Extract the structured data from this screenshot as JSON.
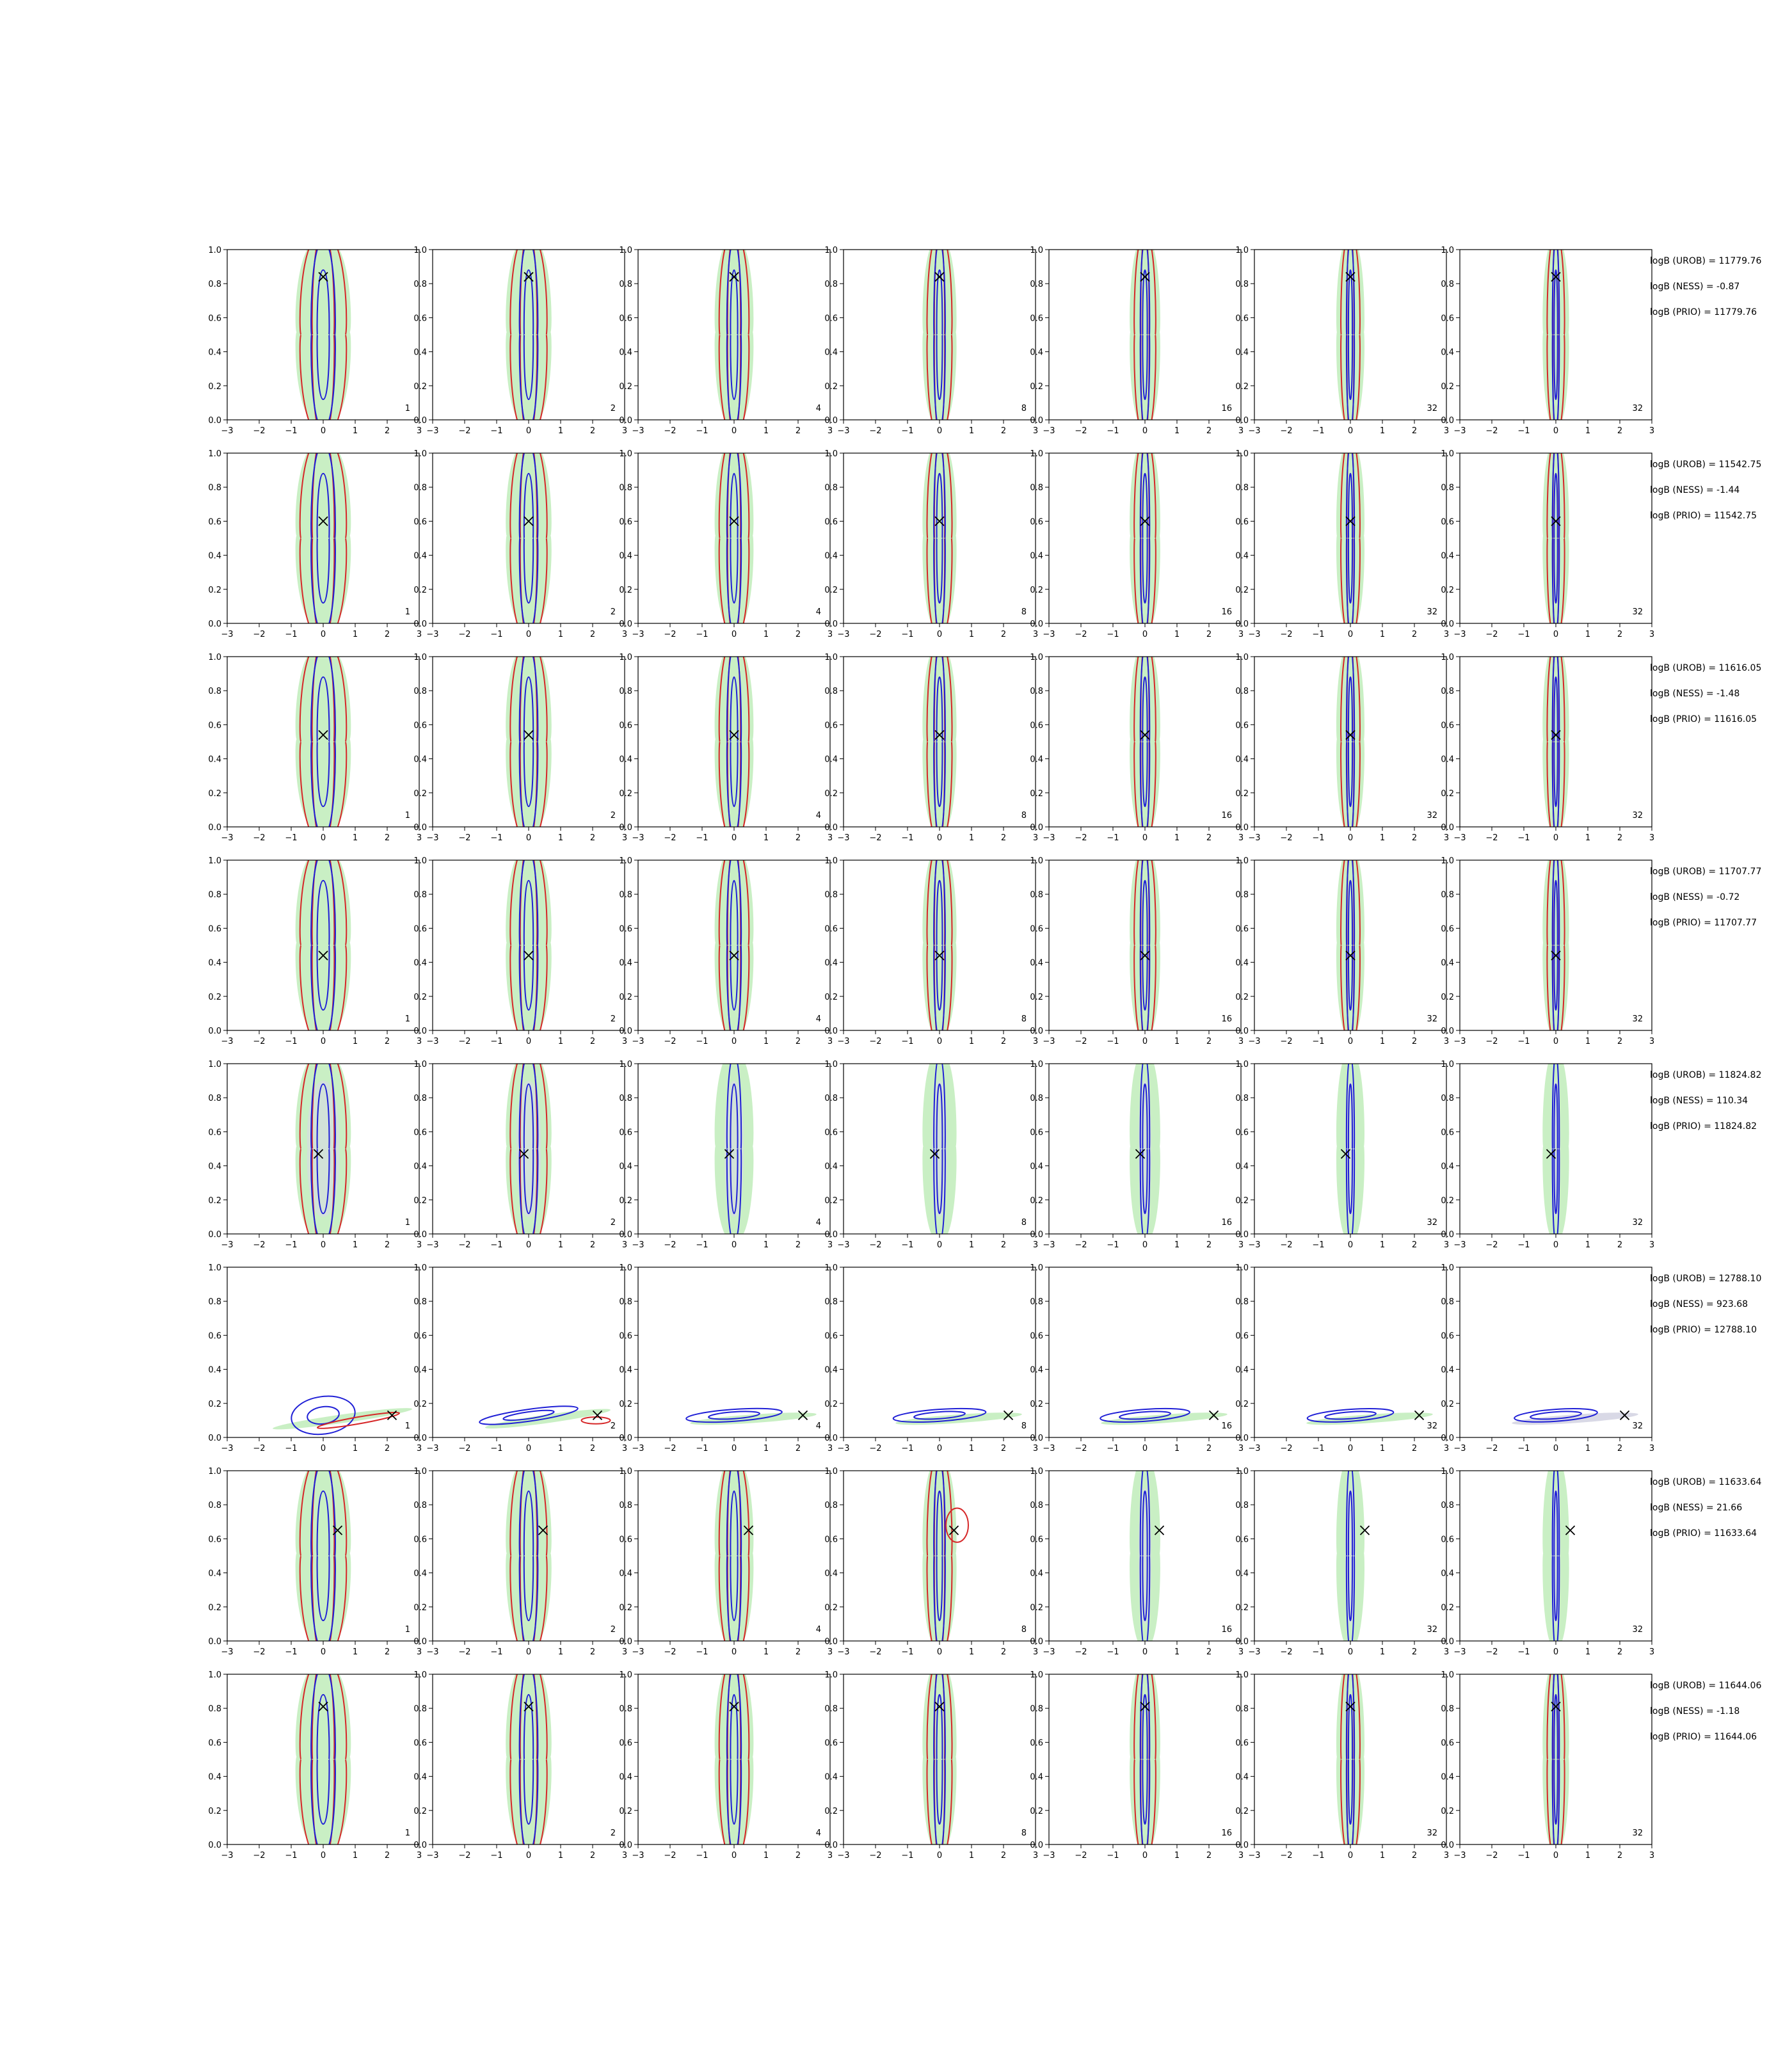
{
  "chart_data": {
    "type": "contour-grid",
    "rows": 8,
    "cols": 7,
    "xlim": [
      -3,
      3
    ],
    "ylim": [
      0.0,
      1.0
    ],
    "x_ticks": [
      "−3",
      "−2",
      "−1",
      "0",
      "1",
      "2",
      "3"
    ],
    "y_ticks": [
      "0.0",
      "0.2",
      "0.4",
      "0.6",
      "0.8",
      "1.0"
    ],
    "panel_labels": [
      "1",
      "2",
      "4",
      "8",
      "16",
      "32",
      "32"
    ],
    "colors": {
      "green_fill": "#c9efc4",
      "grey_fill": "#d9d9e6",
      "red_line": "#d62728",
      "blue_line": "#1f1fd6",
      "marker": "#000000"
    },
    "markers": [
      {
        "x": 0.0,
        "y": 0.84
      },
      {
        "x": 0.0,
        "y": 0.6
      },
      {
        "x": 0.0,
        "y": 0.54
      },
      {
        "x": 0.0,
        "y": 0.44
      },
      {
        "x": -0.15,
        "y": 0.47
      },
      {
        "x": 2.15,
        "y": 0.13
      },
      {
        "x": 0.45,
        "y": 0.65
      },
      {
        "x": 0.0,
        "y": 0.81
      }
    ],
    "annotations": [
      [
        "logB (UROB) = 11779.76",
        "logB (NESS) = -0.87",
        "logB (PRIO) = 11779.76"
      ],
      [
        "logB (UROB) = 11542.75",
        "logB (NESS) = -1.44",
        "logB (PRIO) = 11542.75"
      ],
      [
        "logB (UROB) = 11616.05",
        "logB (NESS) = -1.48",
        "logB (PRIO) = 11616.05"
      ],
      [
        "logB (UROB) = 11707.77",
        "logB (NESS) = -0.72",
        "logB (PRIO) = 11707.77"
      ],
      [
        "logB (UROB) = 11824.82",
        "logB (NESS) = 110.34",
        "logB (PRIO) = 11824.82"
      ],
      [
        "logB (UROB) = 12788.10",
        "logB (NESS) = 923.68",
        "logB (PRIO) = 12788.10"
      ],
      [
        "logB (UROB) = 11633.64",
        "logB (NESS) = 21.66",
        "logB (PRIO) = 11633.64"
      ],
      [
        "logB (UROB) = 11644.06",
        "logB (NESS) = -1.18",
        "logB (PRIO) = 11644.06"
      ]
    ]
  }
}
